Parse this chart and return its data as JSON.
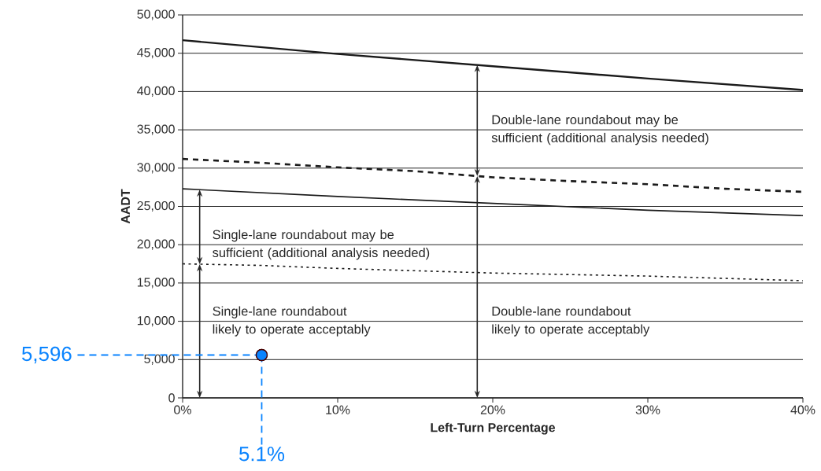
{
  "chart_data": {
    "type": "line",
    "xlabel": "Left-Turn Percentage",
    "ylabel": "AADT",
    "xlim": [
      0,
      40
    ],
    "ylim": [
      0,
      50000
    ],
    "xticks": [
      {
        "value": 0,
        "label": "0%"
      },
      {
        "value": 10,
        "label": "10%"
      },
      {
        "value": 20,
        "label": "20%"
      },
      {
        "value": 30,
        "label": "30%"
      },
      {
        "value": 40,
        "label": "40%"
      }
    ],
    "yticks": [
      {
        "value": 0,
        "label": "0"
      },
      {
        "value": 5000,
        "label": "5,000"
      },
      {
        "value": 10000,
        "label": "10,000"
      },
      {
        "value": 15000,
        "label": "15,000"
      },
      {
        "value": 20000,
        "label": "20,000"
      },
      {
        "value": 25000,
        "label": "25,000"
      },
      {
        "value": 30000,
        "label": "30,000"
      },
      {
        "value": 35000,
        "label": "35,000"
      },
      {
        "value": 40000,
        "label": "40,000"
      },
      {
        "value": 45000,
        "label": "45,000"
      },
      {
        "value": 50000,
        "label": "50,000"
      }
    ],
    "grid": "y",
    "series": [
      {
        "color": "#1a1a1a",
        "line_style": "solid",
        "marker": "none",
        "x": [
          0,
          10,
          20,
          30,
          40
        ],
        "values": [
          46700,
          44900,
          43300,
          41700,
          40200
        ]
      },
      {
        "color": "#1a1a1a",
        "line_style": "dashed",
        "marker": "none",
        "x": [
          0,
          5,
          10,
          15,
          20,
          25,
          30,
          35,
          40
        ],
        "values": [
          31200,
          30700,
          30100,
          29600,
          28800,
          28300,
          27900,
          27300,
          26900
        ]
      },
      {
        "color": "#1a1a1a",
        "line_style": "solid",
        "marker": "none",
        "x": [
          0,
          10,
          20,
          30,
          40
        ],
        "values": [
          27300,
          26300,
          25400,
          24500,
          23800
        ]
      },
      {
        "color": "#1a1a1a",
        "line_style": "dotted",
        "marker": "none",
        "x": [
          0,
          5,
          10,
          15,
          20,
          25,
          30,
          35,
          40
        ],
        "values": [
          17500,
          17300,
          16900,
          16600,
          16300,
          16100,
          15900,
          15600,
          15300
        ]
      },
      {
        "type": "scatter",
        "color": "#0a84ff",
        "marker": "circle",
        "x": [
          5.1
        ],
        "values": [
          5596
        ]
      }
    ],
    "annotations": [
      "Double-lane roundabout may be sufficient (additional analysis needed)",
      "Single-lane roundabout may be sufficient (additional analysis needed)",
      "Single-lane roundabout likely to operate acceptably",
      "Double-lane roundabout likely to operate acceptably",
      {
        "text": "5,596",
        "x": 5.1,
        "y": 5596
      },
      {
        "text": "5.1%",
        "x": 5.1,
        "y": 5596
      }
    ]
  }
}
